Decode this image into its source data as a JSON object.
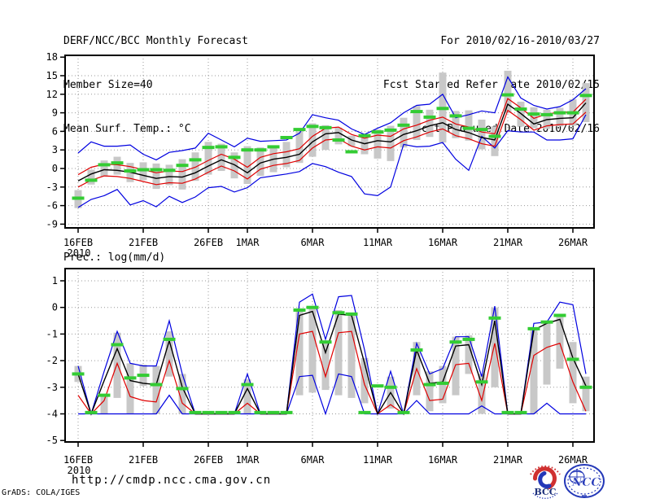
{
  "header": {
    "title": "DERF/NCC/BCC Monthly Forecast",
    "member_size": "Member Size=40",
    "for_range": "For 2010/02/16-2010/03/27",
    "refer_date": "Fcst Started Refer Date 2010/02/15",
    "produced_date": "Fcst Produced Date 2010/02/16"
  },
  "footer": {
    "url": "http://cmdp.ncc.cma.gov.cn",
    "grads_credit": "GrADS: COLA/IGES",
    "bcc_label": "BCC",
    "ncc_label": "NCC"
  },
  "colors": {
    "line_max_min": "#0000e0",
    "line_std": "#e00000",
    "line_mean": "#000000",
    "marker_green": "#33cc33",
    "spread_bar": "#c8c8c8",
    "grid": "#999999",
    "logo_blue": "#2438b8",
    "logo_red": "#cc3333"
  },
  "chart_data": [
    {
      "type": "line",
      "title": "Mean Surf. Temp.: °C",
      "x_year_label": "2010",
      "x_tick_labels": [
        "16FEB",
        "21FEB",
        "26FEB",
        "1MAR",
        "6MAR",
        "11MAR",
        "16MAR",
        "21MAR",
        "26MAR"
      ],
      "x_tick_indices": [
        0,
        5,
        10,
        13,
        18,
        23,
        28,
        33,
        38
      ],
      "categories": [
        "16FEB",
        "17FEB",
        "18FEB",
        "19FEB",
        "20FEB",
        "21FEB",
        "22FEB",
        "23FEB",
        "24FEB",
        "25FEB",
        "26FEB",
        "27FEB",
        "28FEB",
        "1MAR",
        "2MAR",
        "3MAR",
        "4MAR",
        "5MAR",
        "6MAR",
        "7MAR",
        "8MAR",
        "9MAR",
        "10MAR",
        "11MAR",
        "12MAR",
        "13MAR",
        "14MAR",
        "15MAR",
        "16MAR",
        "17MAR",
        "18MAR",
        "19MAR",
        "20MAR",
        "21MAR",
        "22MAR",
        "23MAR",
        "24MAR",
        "25MAR",
        "26MAR",
        "27MAR"
      ],
      "ylim": [
        -9,
        18
      ],
      "yticks": [
        18,
        15,
        12,
        9,
        6,
        3,
        0,
        -3,
        -6,
        -9
      ],
      "grid": true,
      "legend": "none",
      "series": [
        {
          "name": "blue_upper_envelope",
          "color": "#0000e0",
          "values": [
            2.5,
            4.3,
            3.6,
            3.6,
            3.8,
            2.3,
            1.4,
            2.6,
            2.9,
            3.3,
            5.7,
            4.6,
            3.5,
            4.9,
            4.4,
            4.5,
            4.6,
            5.7,
            8.7,
            8.2,
            7.8,
            6.4,
            5.5,
            6.5,
            7.4,
            9.0,
            10.2,
            10.4,
            12.0,
            8.2,
            8.7,
            9.3,
            9.0,
            14.8,
            11.4,
            10.2,
            9.6,
            10.0,
            11.1,
            12.9
          ]
        },
        {
          "name": "blue_lower_envelope",
          "color": "#0000e0",
          "values": [
            -6.3,
            -5.0,
            -4.4,
            -3.4,
            -5.9,
            -5.2,
            -6.2,
            -4.5,
            -5.5,
            -4.6,
            -3.1,
            -2.9,
            -3.8,
            -3.1,
            -1.5,
            -1.2,
            -0.9,
            -0.5,
            0.8,
            0.3,
            -0.6,
            -1.3,
            -4.1,
            -4.4,
            -3.0,
            3.9,
            3.5,
            3.6,
            4.2,
            1.5,
            -0.3,
            5.2,
            3.3,
            6.1,
            5.9,
            5.9,
            4.6,
            4.6,
            4.8,
            8.7
          ]
        },
        {
          "name": "red_upper",
          "color": "#e00000",
          "values": [
            -1.0,
            0.2,
            0.7,
            0.6,
            0.3,
            -0.2,
            -0.7,
            -0.4,
            -0.5,
            0.2,
            1.3,
            2.3,
            1.5,
            0.2,
            1.8,
            2.4,
            2.7,
            3.2,
            5.2,
            6.5,
            6.7,
            5.5,
            4.9,
            5.4,
            5.2,
            6.4,
            7.0,
            7.8,
            8.3,
            7.2,
            6.7,
            5.9,
            5.6,
            11.3,
            9.8,
            8.1,
            8.8,
            9.1,
            9.1,
            11.2
          ]
        },
        {
          "name": "red_lower",
          "color": "#e00000",
          "values": [
            -3.0,
            -1.9,
            -1.2,
            -1.3,
            -1.6,
            -2.1,
            -2.6,
            -2.3,
            -2.4,
            -1.7,
            -0.6,
            0.4,
            -0.4,
            -1.7,
            -0.1,
            0.5,
            0.8,
            1.3,
            3.3,
            4.6,
            4.8,
            3.6,
            3.0,
            3.5,
            3.3,
            4.5,
            5.1,
            5.9,
            6.4,
            5.3,
            4.8,
            4.0,
            3.6,
            9.4,
            7.9,
            6.2,
            6.9,
            7.1,
            7.2,
            9.1
          ]
        },
        {
          "name": "black_mean",
          "color": "#000000",
          "values": [
            -2.0,
            -0.9,
            -0.2,
            -0.3,
            -0.6,
            -1.1,
            -1.6,
            -1.3,
            -1.4,
            -0.7,
            0.4,
            1.4,
            0.6,
            -0.7,
            0.9,
            1.5,
            1.8,
            2.3,
            4.3,
            5.6,
            5.8,
            4.6,
            4.0,
            4.5,
            4.3,
            5.5,
            6.1,
            6.9,
            7.4,
            6.3,
            5.8,
            5.0,
            4.6,
            10.4,
            8.9,
            7.2,
            7.9,
            8.1,
            8.2,
            10.6
          ]
        }
      ],
      "bars": {
        "name": "gray_member_spread",
        "color": "#c8c8c8",
        "hi": [
          -3.5,
          -0.2,
          1.3,
          1.9,
          0.9,
          1.0,
          0.8,
          0.6,
          1.5,
          2.6,
          4.3,
          4.0,
          2.6,
          3.6,
          3.4,
          3.6,
          4.3,
          6.0,
          7.3,
          7.0,
          6.6,
          5.3,
          5.6,
          6.3,
          6.9,
          8.2,
          10.1,
          9.5,
          15.5,
          9.3,
          9.4,
          7.9,
          6.8,
          15.8,
          10.8,
          9.9,
          9.5,
          9.8,
          11.2,
          13.8
        ],
        "lo": [
          -6.4,
          -2.6,
          -1.3,
          -1.0,
          -2.2,
          -1.9,
          -3.3,
          -2.7,
          -3.4,
          -2.0,
          -1.0,
          -0.4,
          -1.6,
          -2.5,
          -1.2,
          -0.6,
          0.2,
          0.9,
          1.9,
          3.0,
          3.9,
          3.6,
          2.3,
          1.6,
          1.2,
          3.4,
          4.6,
          5.1,
          4.2,
          4.9,
          4.5,
          3.1,
          2.0,
          9.0,
          6.8,
          6.5,
          6.4,
          6.8,
          6.9,
          7.5
        ]
      },
      "markers": {
        "name": "green_dash_marks",
        "color": "#33cc33",
        "values": [
          -4.8,
          -1.9,
          0.6,
          0.9,
          -0.4,
          -0.2,
          -0.2,
          -0.3,
          0.5,
          1.4,
          3.4,
          3.5,
          1.8,
          3.0,
          3.0,
          3.5,
          5.0,
          6.3,
          6.8,
          6.6,
          4.6,
          2.7,
          5.3,
          5.9,
          6.2,
          7.0,
          9.2,
          8.3,
          9.7,
          8.5,
          6.5,
          6.3,
          5.2,
          11.9,
          9.6,
          8.8,
          8.7,
          9.0,
          9.0,
          11.8
        ]
      }
    },
    {
      "type": "line",
      "title": "Prec.: log(mm/d)",
      "x_year_label": "2010",
      "x_tick_labels": [
        "16FEB",
        "21FEB",
        "26FEB",
        "1MAR",
        "6MAR",
        "11MAR",
        "16MAR",
        "21MAR",
        "26MAR"
      ],
      "x_tick_indices": [
        0,
        5,
        10,
        13,
        18,
        23,
        28,
        33,
        38
      ],
      "categories": [
        "16FEB",
        "17FEB",
        "18FEB",
        "19FEB",
        "20FEB",
        "21FEB",
        "22FEB",
        "23FEB",
        "24FEB",
        "25FEB",
        "26FEB",
        "27FEB",
        "28FEB",
        "1MAR",
        "2MAR",
        "3MAR",
        "4MAR",
        "5MAR",
        "6MAR",
        "7MAR",
        "8MAR",
        "9MAR",
        "10MAR",
        "11MAR",
        "12MAR",
        "13MAR",
        "14MAR",
        "15MAR",
        "16MAR",
        "17MAR",
        "18MAR",
        "19MAR",
        "20MAR",
        "21MAR",
        "22MAR",
        "23MAR",
        "24MAR",
        "25MAR",
        "26MAR",
        "27MAR"
      ],
      "ylim": [
        -5,
        1
      ],
      "yticks": [
        1,
        0,
        -1,
        -2,
        -3,
        -4,
        -5
      ],
      "grid": true,
      "legend": "none",
      "series": [
        {
          "name": "blue_upper_envelope",
          "color": "#0000e0",
          "values": [
            -2.2,
            -4,
            -2.4,
            -0.9,
            -2.1,
            -2.2,
            -2.2,
            -0.5,
            -2.5,
            -4,
            -4,
            -4,
            -4,
            -2.5,
            -4,
            -4,
            -4,
            0.2,
            0.5,
            -1.2,
            0.4,
            0.45,
            -1.6,
            -4,
            -2.4,
            -4,
            -1.35,
            -2.5,
            -2.3,
            -1.1,
            -1.1,
            -2.6,
            0.05,
            -4,
            -4,
            -0.6,
            -0.55,
            0.2,
            0.1,
            -2.5
          ]
        },
        {
          "name": "blue_lower_envelope",
          "color": "#0000e0",
          "values": [
            -4,
            -4,
            -4,
            -4,
            -4,
            -4,
            -4,
            -3.3,
            -4,
            -4,
            -4,
            -4,
            -4,
            -4,
            -4,
            -4,
            -4,
            -2.6,
            -2.55,
            -4,
            -2.5,
            -2.6,
            -4,
            -4,
            -4,
            -4,
            -3.5,
            -4,
            -4,
            -4,
            -4,
            -3.7,
            -4,
            -4,
            -4,
            -4,
            -3.6,
            -4,
            -4,
            -4
          ]
        },
        {
          "name": "red_lower",
          "color": "#e00000",
          "values": [
            -3.3,
            -4,
            -3.5,
            -2.1,
            -3.35,
            -3.5,
            -3.55,
            -2.0,
            -3.6,
            -4,
            -4,
            -4,
            -4,
            -3.6,
            -4,
            -4,
            -4,
            -1.0,
            -0.9,
            -2.6,
            -0.95,
            -0.9,
            -2.9,
            -4,
            -3.65,
            -4,
            -2.3,
            -3.5,
            -3.45,
            -2.15,
            -2.1,
            -3.5,
            -1.35,
            -4,
            -4,
            -1.8,
            -1.5,
            -1.35,
            -2.8,
            -3.9
          ]
        },
        {
          "name": "black_mean",
          "color": "#000000",
          "values": [
            -2.5,
            -4,
            -2.75,
            -1.55,
            -2.75,
            -2.85,
            -2.9,
            -1.25,
            -3.0,
            -4,
            -4,
            -4,
            -4,
            -3.05,
            -4,
            -4,
            -4,
            -0.3,
            -0.15,
            -1.7,
            -0.25,
            -0.3,
            -2.1,
            -4,
            -3.2,
            -4,
            -1.6,
            -2.85,
            -2.8,
            -1.45,
            -1.4,
            -2.9,
            -0.5,
            -4,
            -4,
            -0.85,
            -0.6,
            -0.45,
            -1.9,
            -2.95
          ]
        }
      ],
      "bars": {
        "name": "gray_member_spread",
        "color": "#c8c8c8",
        "hi": [
          -2.2,
          -4,
          -3.3,
          -0.95,
          -2.1,
          -2.15,
          -2.2,
          -0.9,
          -2.5,
          -4,
          -4,
          -4,
          -4,
          -2.7,
          -4,
          -4,
          -4,
          -0.1,
          0.0,
          -1.3,
          -0.1,
          -0.2,
          -1.9,
          -4,
          -2.6,
          -4,
          -1.3,
          -2.4,
          -2.2,
          -1.1,
          -1.05,
          -2.5,
          0.0,
          -4,
          -4,
          -0.75,
          -0.5,
          -0.25,
          -1.3,
          -2.6
        ],
        "lo": [
          -2.8,
          -4,
          -4,
          -3.4,
          -4,
          -2.95,
          -4,
          -2.6,
          -4,
          -4,
          -4,
          -4,
          -4,
          -4,
          -4,
          -4,
          -4,
          -3.3,
          -3.2,
          -3.1,
          -3.3,
          -3.4,
          -3.6,
          -4,
          -3.8,
          -4,
          -3.3,
          -3.9,
          -3.6,
          -3.3,
          -2.5,
          -4,
          -3.0,
          -4,
          -4,
          -4,
          -2.9,
          -2.3,
          -3.6,
          -3.9
        ]
      },
      "markers": {
        "name": "green_dash_marks",
        "color": "#33cc33",
        "values": [
          -2.5,
          -3.95,
          -3.3,
          -1.4,
          -2.65,
          -2.55,
          -2.9,
          -1.2,
          -3.05,
          -3.95,
          -3.95,
          -3.95,
          -3.95,
          -2.9,
          -3.95,
          -3.95,
          -3.95,
          -0.1,
          0.0,
          -1.3,
          -0.2,
          -0.25,
          -3.95,
          -2.95,
          -3.0,
          -3.95,
          -1.6,
          -2.9,
          -2.85,
          -1.3,
          -1.2,
          -2.8,
          -0.4,
          -3.95,
          -3.95,
          -0.8,
          -0.55,
          -0.3,
          -1.95,
          -3.0
        ]
      }
    }
  ]
}
